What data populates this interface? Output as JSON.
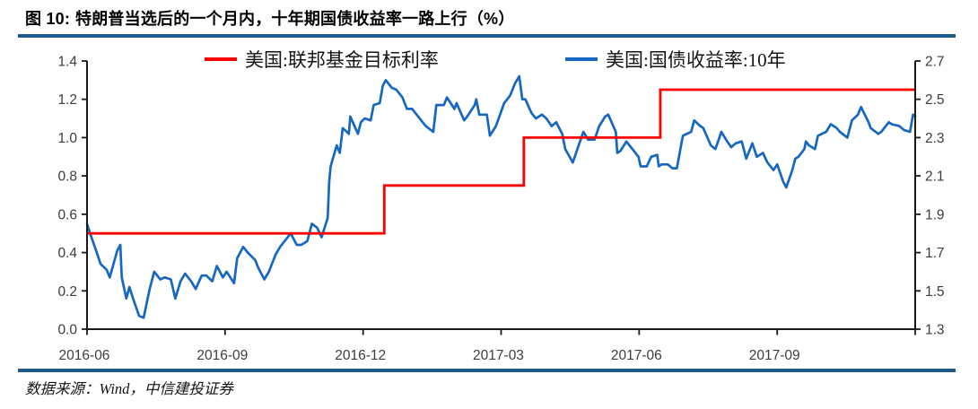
{
  "header": {
    "figure_label": "图 10:",
    "title": "特朗普当选后的一个月内，十年期国债收益率一路上行（%）"
  },
  "footer": {
    "source": "数据来源：Wind，中信建投证券"
  },
  "colors": {
    "accent_rule": "#1E5A88",
    "fed_funds_line": "#FB0000",
    "treasury_line": "#1667C1",
    "axis_line": "#1A1A1A",
    "tick_label": "#3D3D3D"
  },
  "chart_data": {
    "type": "line",
    "title": "特朗普当选后的一个月内，十年期国债收益率一路上行（%）",
    "legend_position": "top",
    "grid": false,
    "x_axis": {
      "domain": [
        "2016-06-01",
        "2017-12-01"
      ],
      "tick_labels": [
        "2016-06",
        "2016-09",
        "2016-12",
        "2017-03",
        "2017-06",
        "2017-09"
      ]
    },
    "left_axis": {
      "range": [
        0.0,
        1.4
      ],
      "ticks": [
        "0.0",
        "0.2",
        "0.4",
        "0.6",
        "0.8",
        "1.0",
        "1.2",
        "1.4"
      ]
    },
    "right_axis": {
      "range": [
        1.3,
        2.7
      ],
      "ticks": [
        "1.3",
        "1.5",
        "1.7",
        "1.9",
        "2.1",
        "2.3",
        "2.5",
        "2.7"
      ]
    },
    "legend": [
      {
        "name": "美国:联邦基金目标利率",
        "color": "#FB0000",
        "axis": "left",
        "style": "step"
      },
      {
        "name": "美国:国债收益率:10年",
        "color": "#1667C1",
        "axis": "right",
        "style": "line"
      }
    ],
    "series": [
      {
        "name": "美国:联邦基金目标利率",
        "axis": "left",
        "style": "step",
        "points": [
          [
            "2016-06-01",
            0.5
          ],
          [
            "2016-12-15",
            0.75
          ],
          [
            "2017-03-16",
            1.0
          ],
          [
            "2017-06-15",
            1.25
          ],
          [
            "2017-12-01",
            1.25
          ]
        ]
      },
      {
        "name": "美国:国债收益率:10年",
        "axis": "right",
        "style": "line",
        "points": [
          [
            "2016-06-01",
            1.85
          ],
          [
            "2016-06-03",
            1.8
          ],
          [
            "2016-06-07",
            1.71
          ],
          [
            "2016-06-10",
            1.64
          ],
          [
            "2016-06-14",
            1.61
          ],
          [
            "2016-06-16",
            1.57
          ],
          [
            "2016-06-21",
            1.71
          ],
          [
            "2016-06-23",
            1.74
          ],
          [
            "2016-06-24",
            1.57
          ],
          [
            "2016-06-27",
            1.46
          ],
          [
            "2016-06-29",
            1.52
          ],
          [
            "2016-07-01",
            1.46
          ],
          [
            "2016-07-05",
            1.37
          ],
          [
            "2016-07-08",
            1.36
          ],
          [
            "2016-07-12",
            1.51
          ],
          [
            "2016-07-15",
            1.6
          ],
          [
            "2016-07-19",
            1.56
          ],
          [
            "2016-07-22",
            1.57
          ],
          [
            "2016-07-26",
            1.56
          ],
          [
            "2016-07-29",
            1.46
          ],
          [
            "2016-08-02",
            1.55
          ],
          [
            "2016-08-05",
            1.59
          ],
          [
            "2016-08-09",
            1.55
          ],
          [
            "2016-08-12",
            1.51
          ],
          [
            "2016-08-16",
            1.58
          ],
          [
            "2016-08-19",
            1.58
          ],
          [
            "2016-08-23",
            1.55
          ],
          [
            "2016-08-26",
            1.63
          ],
          [
            "2016-08-30",
            1.57
          ],
          [
            "2016-09-02",
            1.6
          ],
          [
            "2016-09-07",
            1.54
          ],
          [
            "2016-09-09",
            1.67
          ],
          [
            "2016-09-13",
            1.73
          ],
          [
            "2016-09-16",
            1.7
          ],
          [
            "2016-09-21",
            1.66
          ],
          [
            "2016-09-23",
            1.62
          ],
          [
            "2016-09-27",
            1.56
          ],
          [
            "2016-09-30",
            1.6
          ],
          [
            "2016-10-04",
            1.69
          ],
          [
            "2016-10-07",
            1.73
          ],
          [
            "2016-10-11",
            1.77
          ],
          [
            "2016-10-14",
            1.8
          ],
          [
            "2016-10-18",
            1.74
          ],
          [
            "2016-10-21",
            1.74
          ],
          [
            "2016-10-25",
            1.76
          ],
          [
            "2016-10-28",
            1.85
          ],
          [
            "2016-11-01",
            1.83
          ],
          [
            "2016-11-04",
            1.78
          ],
          [
            "2016-11-08",
            1.88
          ],
          [
            "2016-11-09",
            2.07
          ],
          [
            "2016-11-10",
            2.15
          ],
          [
            "2016-11-14",
            2.26
          ],
          [
            "2016-11-16",
            2.22
          ],
          [
            "2016-11-18",
            2.35
          ],
          [
            "2016-11-22",
            2.32
          ],
          [
            "2016-11-23",
            2.41
          ],
          [
            "2016-11-28",
            2.32
          ],
          [
            "2016-11-30",
            2.38
          ],
          [
            "2016-12-02",
            2.4
          ],
          [
            "2016-12-06",
            2.39
          ],
          [
            "2016-12-08",
            2.47
          ],
          [
            "2016-12-12",
            2.48
          ],
          [
            "2016-12-14",
            2.57
          ],
          [
            "2016-12-16",
            2.6
          ],
          [
            "2016-12-20",
            2.56
          ],
          [
            "2016-12-23",
            2.55
          ],
          [
            "2016-12-27",
            2.51
          ],
          [
            "2016-12-30",
            2.45
          ],
          [
            "2017-01-03",
            2.45
          ],
          [
            "2017-01-06",
            2.42
          ],
          [
            "2017-01-10",
            2.38
          ],
          [
            "2017-01-12",
            2.36
          ],
          [
            "2017-01-17",
            2.33
          ],
          [
            "2017-01-19",
            2.47
          ],
          [
            "2017-01-24",
            2.47
          ],
          [
            "2017-01-26",
            2.51
          ],
          [
            "2017-01-31",
            2.45
          ],
          [
            "2017-02-02",
            2.48
          ],
          [
            "2017-02-07",
            2.39
          ],
          [
            "2017-02-09",
            2.41
          ],
          [
            "2017-02-14",
            2.47
          ],
          [
            "2017-02-15",
            2.5
          ],
          [
            "2017-02-17",
            2.42
          ],
          [
            "2017-02-22",
            2.42
          ],
          [
            "2017-02-24",
            2.31
          ],
          [
            "2017-02-28",
            2.36
          ],
          [
            "2017-03-03",
            2.48
          ],
          [
            "2017-03-07",
            2.52
          ],
          [
            "2017-03-10",
            2.58
          ],
          [
            "2017-03-13",
            2.62
          ],
          [
            "2017-03-15",
            2.5
          ],
          [
            "2017-03-17",
            2.5
          ],
          [
            "2017-03-21",
            2.43
          ],
          [
            "2017-03-24",
            2.4
          ],
          [
            "2017-03-28",
            2.42
          ],
          [
            "2017-03-31",
            2.4
          ],
          [
            "2017-04-04",
            2.36
          ],
          [
            "2017-04-07",
            2.38
          ],
          [
            "2017-04-11",
            2.32
          ],
          [
            "2017-04-13",
            2.24
          ],
          [
            "2017-04-18",
            2.17
          ],
          [
            "2017-04-21",
            2.24
          ],
          [
            "2017-04-25",
            2.33
          ],
          [
            "2017-04-28",
            2.29
          ],
          [
            "2017-05-02",
            2.29
          ],
          [
            "2017-05-05",
            2.36
          ],
          [
            "2017-05-09",
            2.41
          ],
          [
            "2017-05-11",
            2.42
          ],
          [
            "2017-05-16",
            2.33
          ],
          [
            "2017-05-17",
            2.22
          ],
          [
            "2017-05-19",
            2.23
          ],
          [
            "2017-05-23",
            2.28
          ],
          [
            "2017-05-26",
            2.25
          ],
          [
            "2017-05-31",
            2.2
          ],
          [
            "2017-06-02",
            2.15
          ],
          [
            "2017-06-06",
            2.15
          ],
          [
            "2017-06-09",
            2.2
          ],
          [
            "2017-06-13",
            2.21
          ],
          [
            "2017-06-14",
            2.15
          ],
          [
            "2017-06-16",
            2.16
          ],
          [
            "2017-06-20",
            2.16
          ],
          [
            "2017-06-23",
            2.14
          ],
          [
            "2017-06-26",
            2.14
          ],
          [
            "2017-06-29",
            2.27
          ],
          [
            "2017-06-30",
            2.31
          ],
          [
            "2017-07-05",
            2.33
          ],
          [
            "2017-07-07",
            2.39
          ],
          [
            "2017-07-11",
            2.36
          ],
          [
            "2017-07-13",
            2.35
          ],
          [
            "2017-07-18",
            2.26
          ],
          [
            "2017-07-21",
            2.24
          ],
          [
            "2017-07-25",
            2.33
          ],
          [
            "2017-07-28",
            2.29
          ],
          [
            "2017-08-01",
            2.25
          ],
          [
            "2017-08-04",
            2.27
          ],
          [
            "2017-08-08",
            2.28
          ],
          [
            "2017-08-11",
            2.19
          ],
          [
            "2017-08-15",
            2.27
          ],
          [
            "2017-08-18",
            2.2
          ],
          [
            "2017-08-22",
            2.22
          ],
          [
            "2017-08-25",
            2.17
          ],
          [
            "2017-08-29",
            2.13
          ],
          [
            "2017-09-01",
            2.16
          ],
          [
            "2017-09-05",
            2.07
          ],
          [
            "2017-09-07",
            2.04
          ],
          [
            "2017-09-11",
            2.13
          ],
          [
            "2017-09-13",
            2.19
          ],
          [
            "2017-09-15",
            2.2
          ],
          [
            "2017-09-19",
            2.24
          ],
          [
            "2017-09-20",
            2.28
          ],
          [
            "2017-09-22",
            2.26
          ],
          [
            "2017-09-26",
            2.24
          ],
          [
            "2017-09-28",
            2.31
          ],
          [
            "2017-10-03",
            2.33
          ],
          [
            "2017-10-06",
            2.37
          ],
          [
            "2017-10-10",
            2.35
          ],
          [
            "2017-10-12",
            2.33
          ],
          [
            "2017-10-17",
            2.3
          ],
          [
            "2017-10-20",
            2.39
          ],
          [
            "2017-10-24",
            2.42
          ],
          [
            "2017-10-26",
            2.46
          ],
          [
            "2017-10-31",
            2.38
          ],
          [
            "2017-11-02",
            2.35
          ],
          [
            "2017-11-07",
            2.32
          ],
          [
            "2017-11-09",
            2.33
          ],
          [
            "2017-11-14",
            2.38
          ],
          [
            "2017-11-16",
            2.37
          ],
          [
            "2017-11-21",
            2.36
          ],
          [
            "2017-11-24",
            2.34
          ],
          [
            "2017-11-28",
            2.33
          ],
          [
            "2017-11-30",
            2.42
          ],
          [
            "2017-12-01",
            2.41
          ]
        ]
      }
    ]
  }
}
